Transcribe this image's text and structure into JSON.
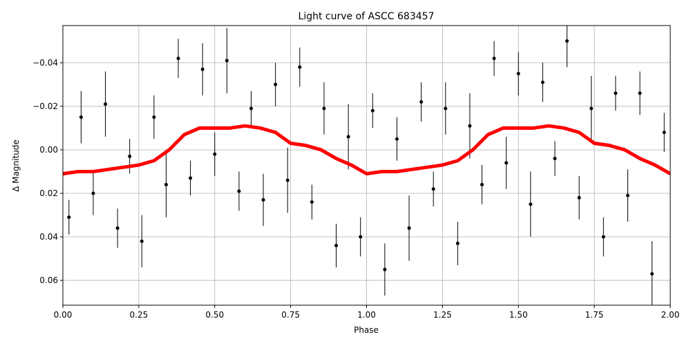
{
  "chart_data": {
    "type": "scatter",
    "title": "Light curve of ASCC 683457",
    "xlabel": "Phase",
    "ylabel": "Δ Magnitude",
    "xlim": [
      0,
      2
    ],
    "ylim": [
      0.0714,
      -0.0571
    ],
    "grid": true,
    "xticks": [
      {
        "value": 0,
        "label": "0.00"
      },
      0.25,
      {
        "value": 0.5,
        "label": "0.50"
      },
      0.75,
      {
        "value": 1,
        "label": "1.00"
      },
      1.25,
      {
        "value": 1.5,
        "label": "1.50"
      },
      1.75,
      {
        "value": 2,
        "label": "2.00"
      }
    ],
    "yticks": [
      {
        "value": -0.04,
        "label": "−0.04"
      },
      {
        "value": -0.02,
        "label": "−0.02"
      },
      {
        "value": 0,
        "label": "0.00"
      },
      0.02,
      0.04,
      0.06
    ],
    "series": [
      {
        "type": "errorbar",
        "color": "#000000",
        "x": [
          0.02,
          0.06,
          0.1,
          0.14,
          0.18,
          0.22,
          0.26,
          0.3,
          0.34,
          0.38,
          0.42,
          0.46,
          0.5,
          0.54,
          0.58,
          0.62,
          0.66,
          0.7,
          0.74,
          0.78,
          0.82,
          0.86,
          0.9,
          0.94,
          0.98,
          1.02,
          1.06,
          1.1,
          1.14,
          1.18,
          1.22,
          1.26,
          1.3,
          1.34,
          1.38,
          1.42,
          1.46,
          1.5,
          1.54,
          1.58,
          1.62,
          1.66,
          1.7,
          1.74,
          1.78,
          1.82,
          1.86,
          1.9,
          1.94,
          1.98
        ],
        "values": [
          0.031,
          -0.015,
          0.02,
          -0.021,
          0.036,
          0.003,
          0.042,
          -0.015,
          0.016,
          -0.042,
          0.013,
          -0.037,
          0.002,
          -0.041,
          0.019,
          -0.019,
          0.023,
          -0.03,
          0.014,
          -0.038,
          0.024,
          -0.019,
          0.044,
          -0.006,
          0.04,
          -0.018,
          0.055,
          -0.005,
          0.036,
          -0.022,
          0.018,
          -0.019,
          0.043,
          -0.011,
          0.016,
          -0.042,
          0.006,
          -0.035,
          0.025,
          -0.031,
          0.004,
          -0.05,
          0.022,
          -0.019,
          0.04,
          -0.026,
          0.021,
          -0.026,
          0.057,
          -0.008
        ],
        "errors": [
          0.008,
          0.012,
          0.01,
          0.015,
          0.009,
          0.008,
          0.012,
          0.01,
          0.015,
          0.009,
          0.008,
          0.012,
          0.01,
          0.015,
          0.009,
          0.008,
          0.012,
          0.01,
          0.015,
          0.009,
          0.008,
          0.012,
          0.01,
          0.015,
          0.009,
          0.008,
          0.012,
          0.01,
          0.015,
          0.009,
          0.008,
          0.012,
          0.01,
          0.015,
          0.009,
          0.008,
          0.012,
          0.01,
          0.015,
          0.009,
          0.008,
          0.012,
          0.01,
          0.015,
          0.009,
          0.008,
          0.012,
          0.01,
          0.015,
          0.009
        ]
      },
      {
        "type": "line",
        "color": "#ff0000",
        "x": [
          0,
          0.05,
          0.1,
          0.15,
          0.2,
          0.25,
          0.3,
          0.35,
          0.4,
          0.45,
          0.5,
          0.55,
          0.6,
          0.65,
          0.7,
          0.75,
          0.8,
          0.85,
          0.9,
          0.95,
          1.0,
          1.05,
          1.1,
          1.15,
          1.2,
          1.25,
          1.3,
          1.35,
          1.4,
          1.45,
          1.5,
          1.55,
          1.6,
          1.65,
          1.7,
          1.75,
          1.8,
          1.85,
          1.9,
          1.95,
          2.0
        ],
        "values": [
          0.011,
          0.01,
          0.01,
          0.009,
          0.008,
          0.007,
          0.005,
          0.0,
          -0.007,
          -0.01,
          -0.01,
          -0.01,
          -0.011,
          -0.01,
          -0.008,
          -0.003,
          -0.002,
          0.0,
          0.004,
          0.007,
          0.011,
          0.01,
          0.01,
          0.009,
          0.008,
          0.007,
          0.005,
          0.0,
          -0.007,
          -0.01,
          -0.01,
          -0.01,
          -0.011,
          -0.01,
          -0.008,
          -0.003,
          -0.002,
          0.0,
          0.004,
          0.007,
          0.011
        ]
      }
    ]
  }
}
